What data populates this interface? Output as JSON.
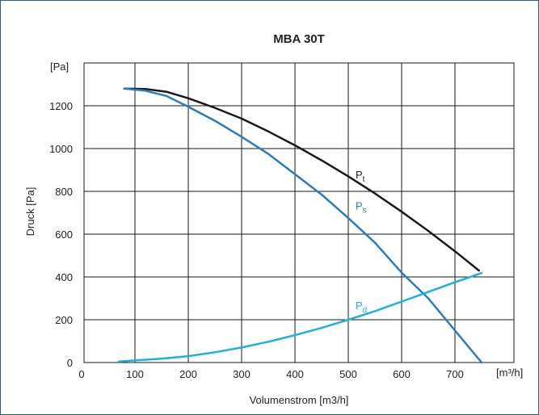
{
  "chart_data": {
    "type": "line",
    "title": "MBA 30T",
    "xlabel": "Volumenstrom [m3/h]",
    "ylabel": "Druck  [Pa]",
    "y_unit": "[Pa]",
    "x_unit": "[m³/h]",
    "xlim": [
      0,
      800
    ],
    "ylim": [
      0,
      1400
    ],
    "x_ticks": [
      0,
      100,
      200,
      300,
      400,
      500,
      600,
      700
    ],
    "y_ticks": [
      0,
      200,
      400,
      600,
      800,
      1000,
      1200
    ],
    "grid": true,
    "series": [
      {
        "name": "Pt",
        "label_main": "P",
        "label_sub": "t",
        "color": "#1a1a1a",
        "x": [
          80,
          120,
          160,
          200,
          250,
          300,
          350,
          400,
          450,
          500,
          550,
          600,
          650,
          700,
          745
        ],
        "y": [
          1280,
          1278,
          1265,
          1235,
          1190,
          1140,
          1080,
          1015,
          945,
          870,
          790,
          705,
          615,
          520,
          430
        ]
      },
      {
        "name": "Ps",
        "label_main": "P",
        "label_sub": "s",
        "color": "#2b7bbf",
        "x": [
          80,
          120,
          160,
          200,
          250,
          300,
          350,
          400,
          450,
          500,
          550,
          600,
          650,
          700,
          750
        ],
        "y": [
          1280,
          1270,
          1245,
          1195,
          1130,
          1055,
          975,
          880,
          785,
          675,
          560,
          420,
          300,
          150,
          0
        ]
      },
      {
        "name": "Pd",
        "label_main": "P",
        "label_sub": "d",
        "color": "#1bb1e4",
        "x": [
          70,
          100,
          150,
          200,
          250,
          300,
          350,
          400,
          450,
          500,
          550,
          600,
          650,
          700,
          750
        ],
        "y": [
          5,
          10,
          18,
          30,
          48,
          70,
          97,
          128,
          162,
          200,
          240,
          285,
          330,
          375,
          418
        ]
      }
    ]
  }
}
